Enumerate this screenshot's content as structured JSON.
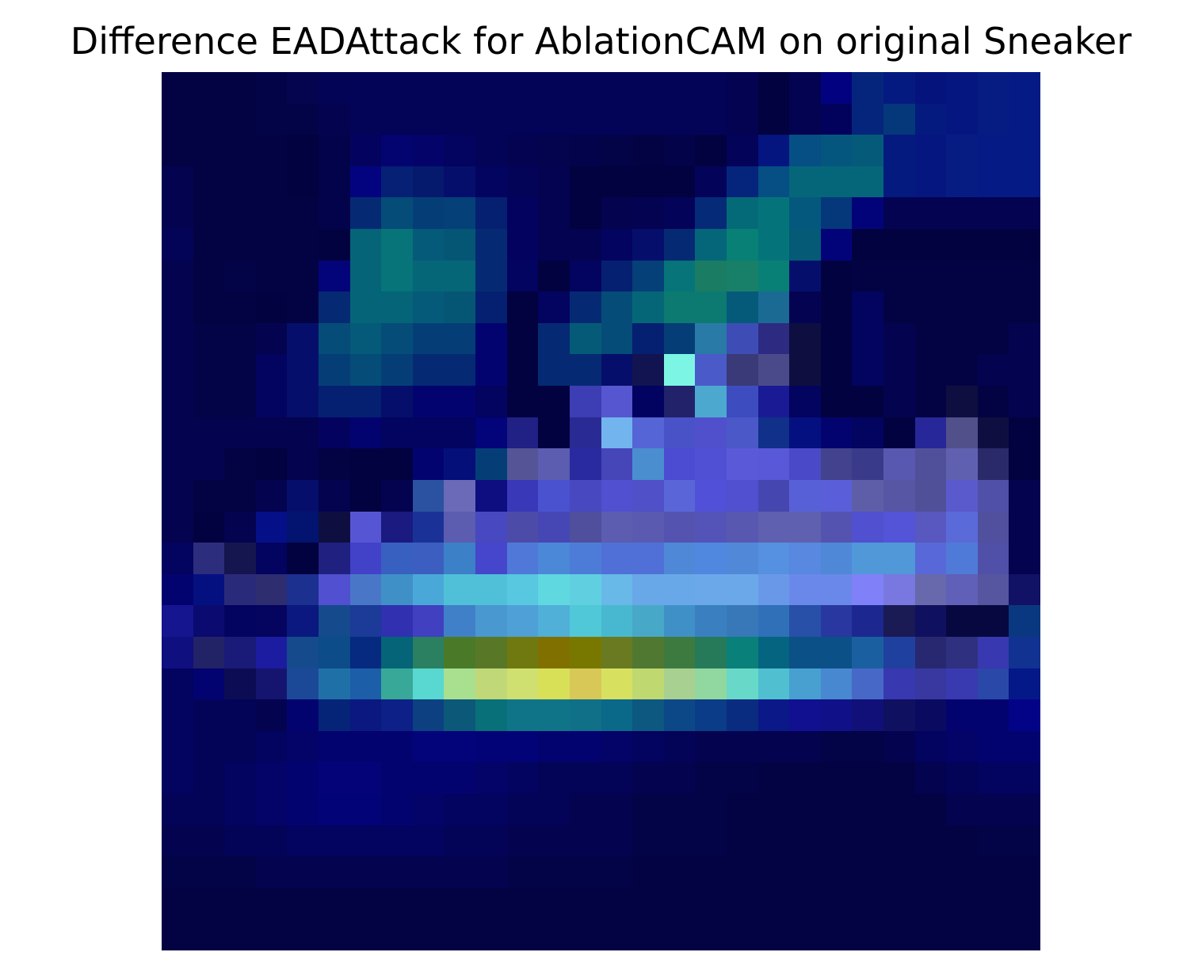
{
  "figure": {
    "title": "Difference EADAttack for AblationCAM on original Sneaker",
    "colormap": "jet-overlay",
    "grid_size": 28,
    "rows": [
      [
        "#030344",
        "#030344",
        "#030344",
        "#030348",
        "#04044f",
        "#040457",
        "#030357",
        "#030357",
        "#030357",
        "#030357",
        "#030357",
        "#030357",
        "#030357",
        "#030357",
        "#030357",
        "#030357",
        "#030357",
        "#030357",
        "#030351",
        "#020240",
        "#030351",
        "#020280",
        "#05257c",
        "#051a80",
        "#05147d",
        "#061681",
        "#071c83",
        "#061a85"
      ],
      [
        "#030344",
        "#030344",
        "#030344",
        "#030348",
        "#030348",
        "#030350",
        "#030357",
        "#030357",
        "#030357",
        "#030357",
        "#030357",
        "#030357",
        "#030357",
        "#030357",
        "#030357",
        "#030357",
        "#030357",
        "#030357",
        "#030351",
        "#020240",
        "#030351",
        "#02025c",
        "#05257c",
        "#05387a",
        "#051a7e",
        "#061681",
        "#071c83",
        "#061a85"
      ],
      [
        "#030344",
        "#030344",
        "#030344",
        "#030344",
        "#020240",
        "#03034b",
        "#03035f",
        "#040470",
        "#03036a",
        "#030360",
        "#030358",
        "#030352",
        "#03034e",
        "#03034c",
        "#030348",
        "#030344",
        "#03034a",
        "#020240",
        "#03035a",
        "#05157f",
        "#054f84",
        "#05567f",
        "#055a7a",
        "#051a7e",
        "#061681",
        "#071c83",
        "#061a85",
        "#061a85"
      ],
      [
        "#030350",
        "#030344",
        "#030344",
        "#030344",
        "#020240",
        "#03034b",
        "#03037f",
        "#052074",
        "#051a6d",
        "#050f6b",
        "#030360",
        "#030358",
        "#030352",
        "#020240",
        "#020240",
        "#020240",
        "#020240",
        "#03035a",
        "#05257c",
        "#054f84",
        "#05667a",
        "#05667a",
        "#05667a",
        "#051a7e",
        "#061681",
        "#071c83",
        "#061a85",
        "#061a85"
      ],
      [
        "#030350",
        "#030344",
        "#030344",
        "#030344",
        "#030344",
        "#03034b",
        "#052a73",
        "#054c78",
        "#053e77",
        "#054078",
        "#052070",
        "#03035f",
        "#030352",
        "#020240",
        "#030350",
        "#030352",
        "#03035a",
        "#052a78",
        "#056a78",
        "#05747a",
        "#05587d",
        "#05387a",
        "#030379",
        "#030352",
        "#030352",
        "#030352",
        "#030352",
        "#030352"
      ],
      [
        "#030358",
        "#030344",
        "#030344",
        "#030344",
        "#030344",
        "#020240",
        "#056478",
        "#067478",
        "#055a7a",
        "#055675",
        "#052a73",
        "#03035f",
        "#030352",
        "#030352",
        "#030360",
        "#050f6b",
        "#052a73",
        "#05667a",
        "#088075",
        "#05747a",
        "#055a75",
        "#030379",
        "#020240",
        "#020240",
        "#020240",
        "#020240",
        "#020240",
        "#020240"
      ],
      [
        "#030350",
        "#030344",
        "#030348",
        "#030344",
        "#030344",
        "#04047a",
        "#056478",
        "#067478",
        "#056678",
        "#056678",
        "#052a73",
        "#030360",
        "#020240",
        "#030360",
        "#052070",
        "#054078",
        "#067478",
        "#1a7c62",
        "#188068",
        "#088075",
        "#050f6b",
        "#020240",
        "#030344",
        "#030344",
        "#030344",
        "#030344",
        "#030344",
        "#030344"
      ],
      [
        "#030350",
        "#030344",
        "#030344",
        "#020240",
        "#030344",
        "#052a73",
        "#056478",
        "#056478",
        "#055a7a",
        "#055675",
        "#052070",
        "#020240",
        "#030360",
        "#052a73",
        "#054c78",
        "#056678",
        "#0c7a70",
        "#0c7a70",
        "#055a7a",
        "#1b6a94",
        "#030352",
        "#020240",
        "#030360",
        "#030344",
        "#030344",
        "#030344",
        "#030344",
        "#030344"
      ],
      [
        "#030350",
        "#030348",
        "#030348",
        "#030350",
        "#050f6b",
        "#054c78",
        "#055a7a",
        "#054c78",
        "#053e77",
        "#053e77",
        "#030370",
        "#020240",
        "#052a73",
        "#055a78",
        "#054c78",
        "#052070",
        "#053e77",
        "#2a7aa8",
        "#3d4db5",
        "#2d2a82",
        "#0e0f40",
        "#020240",
        "#030360",
        "#030350",
        "#030344",
        "#030344",
        "#030344",
        "#030350"
      ],
      [
        "#030350",
        "#030348",
        "#030348",
        "#030360",
        "#050f6b",
        "#053e77",
        "#054c78",
        "#053e77",
        "#052a73",
        "#052a73",
        "#030370",
        "#020240",
        "#052a73",
        "#052a73",
        "#050f6b",
        "#111450",
        "#7df5e5",
        "#4a5ac8",
        "#3a3a78",
        "#4a4a8a",
        "#0e0f40",
        "#020240",
        "#030360",
        "#030350",
        "#030344",
        "#030344",
        "#030350",
        "#030350"
      ],
      [
        "#030350",
        "#030348",
        "#030348",
        "#030360",
        "#050f6b",
        "#052070",
        "#052070",
        "#050f6b",
        "#030370",
        "#030370",
        "#030360",
        "#020240",
        "#020240",
        "#3d3db4",
        "#5656d0",
        "#020260",
        "#22226a",
        "#4da8d0",
        "#3d4dc0",
        "#1a1a95",
        "#030360",
        "#020240",
        "#020240",
        "#030350",
        "#030344",
        "#0e0f40",
        "#030344",
        "#030350"
      ],
      [
        "#030350",
        "#030350",
        "#030350",
        "#030350",
        "#030350",
        "#03035f",
        "#030370",
        "#030360",
        "#030360",
        "#030360",
        "#03037a",
        "#202085",
        "#020240",
        "#2a2a94",
        "#72b4ee",
        "#5565d5",
        "#4a52c8",
        "#5050cc",
        "#4a58c8",
        "#10308a",
        "#051080",
        "#030370",
        "#030360",
        "#020240",
        "#27279a",
        "#51508a",
        "#0e0f40",
        "#020240"
      ],
      [
        "#030350",
        "#030350",
        "#030344",
        "#020240",
        "#030350",
        "#030344",
        "#020240",
        "#020240",
        "#030370",
        "#050f7a",
        "#053e77",
        "#545496",
        "#5c5cb0",
        "#2a2aa0",
        "#4646b8",
        "#4a8ed0",
        "#4c4cd2",
        "#5050d4",
        "#5a5ad8",
        "#5858d8",
        "#4a4ac8",
        "#42428e",
        "#3a3a8a",
        "#5858b0",
        "#50509a",
        "#6060b0",
        "#2a2a6a",
        "#020240"
      ],
      [
        "#030350",
        "#030344",
        "#030344",
        "#030350",
        "#050f6b",
        "#030350",
        "#020240",
        "#030350",
        "#2a52a0",
        "#6a6ab8",
        "#0e0e80",
        "#3838b8",
        "#4a52d0",
        "#4848c0",
        "#5050d0",
        "#5050c8",
        "#5a66d8",
        "#5050d8",
        "#5050d0",
        "#4646b0",
        "#5860d8",
        "#5a5ed8",
        "#5e5ea8",
        "#5656a4",
        "#505098",
        "#5a5acc",
        "#5050a8",
        "#030350"
      ],
      [
        "#030350",
        "#020240",
        "#030350",
        "#050f88",
        "#031470",
        "#0e0f40",
        "#5656d4",
        "#1a1a80",
        "#1a3298",
        "#5c5cb0",
        "#4848c0",
        "#4c4ca8",
        "#4646b4",
        "#4f4f9e",
        "#5c5cb0",
        "#5a5ab0",
        "#5454b0",
        "#5454b8",
        "#5858b0",
        "#6060b0",
        "#6060b0",
        "#5454b0",
        "#5050d0",
        "#5454d8",
        "#5858c0",
        "#5a6ad8",
        "#50509e",
        "#030350"
      ],
      [
        "#030360",
        "#2d2d7e",
        "#151550",
        "#030360",
        "#020240",
        "#202080",
        "#4242c8",
        "#3860c0",
        "#3c5ec0",
        "#3c80c8",
        "#4646cc",
        "#5078d8",
        "#4c88d8",
        "#4d7cd8",
        "#5070d8",
        "#5070d8",
        "#5088d8",
        "#5088e0",
        "#5288d8",
        "#5690e0",
        "#5888e0",
        "#5088d8",
        "#5098d8",
        "#5098d8",
        "#5868d8",
        "#507ad8",
        "#5050a8",
        "#030350"
      ],
      [
        "#030370",
        "#051080",
        "#2a2a7a",
        "#2d2d70",
        "#1c3090",
        "#5050d0",
        "#4a76c8",
        "#4090c8",
        "#4aa8d8",
        "#50c0d8",
        "#50c0d8",
        "#58c8e0",
        "#60d8e0",
        "#60d0e0",
        "#68b8e8",
        "#68a8e8",
        "#68a8e8",
        "#6aa8ea",
        "#6aa8ea",
        "#6a98e8",
        "#6a88ea",
        "#6a88ea",
        "#8080f8",
        "#7878e0",
        "#6868ac",
        "#6060b8",
        "#5555a0",
        "#111166"
      ],
      [
        "#151590",
        "#0a0a70",
        "#030360",
        "#050560",
        "#0a1880",
        "#154a8c",
        "#1c3a98",
        "#3030b0",
        "#4040c0",
        "#4080c8",
        "#4a98d0",
        "#50a0d8",
        "#50b0d8",
        "#50c8d8",
        "#48b8d0",
        "#48a8c8",
        "#4090c8",
        "#3a80c0",
        "#3878b8",
        "#3070b8",
        "#2850a8",
        "#2838a0",
        "#1c2890",
        "#1a1a55",
        "#101060",
        "#080840",
        "#080840",
        "#0a3880"
      ],
      [
        "#100f80",
        "#222266",
        "#1a1a78",
        "#1c1ca0",
        "#154a8c",
        "#0c4c88",
        "#052a80",
        "#056478",
        "#2a8060",
        "#4a7a28",
        "#587828",
        "#707810",
        "#807000",
        "#787800",
        "#6a7a20",
        "#507830",
        "#3c7a40",
        "#267a5a",
        "#0a807a",
        "#056480",
        "#0c5088",
        "#0c5088",
        "#1a60a0",
        "#2040a0",
        "#282870",
        "#303080",
        "#3838b0",
        "#123292"
      ],
      [
        "#030360",
        "#020270",
        "#0c0c54",
        "#151570",
        "#1c4898",
        "#2070a8",
        "#1c5ea8",
        "#38a898",
        "#58d8d0",
        "#a8e090",
        "#c0d878",
        "#d0e070",
        "#d8e058",
        "#d8c858",
        "#d8e060",
        "#c0d870",
        "#a8d090",
        "#90d8a0",
        "#68d8c8",
        "#50c0d0",
        "#48a0d0",
        "#4888d0",
        "#4868c8",
        "#3838b0",
        "#3838a0",
        "#3a3ab0",
        "#2a48a8",
        "#051888"
      ],
      [
        "#030360",
        "#030358",
        "#030358",
        "#030350",
        "#030370",
        "#052478",
        "#0a1880",
        "#0c2088",
        "#0c4080",
        "#0c5878",
        "#087078",
        "#107488",
        "#107488",
        "#107088",
        "#0a6888",
        "#0c5880",
        "#0c4888",
        "#0a3c88",
        "#0a2c80",
        "#0a1888",
        "#101090",
        "#101088",
        "#101078",
        "#101060",
        "#0a0a60",
        "#030370",
        "#030370",
        "#030388"
      ],
      [
        "#030360",
        "#030358",
        "#030358",
        "#030360",
        "#030368",
        "#030370",
        "#030370",
        "#030370",
        "#03037a",
        "#03037a",
        "#030378",
        "#030378",
        "#030370",
        "#030370",
        "#030368",
        "#030360",
        "#030358",
        "#030350",
        "#030350",
        "#030350",
        "#030350",
        "#030348",
        "#030348",
        "#030350",
        "#030360",
        "#030368",
        "#030370",
        "#030370"
      ],
      [
        "#030360",
        "#030358",
        "#030360",
        "#030368",
        "#030370",
        "#040478",
        "#040478",
        "#030370",
        "#030370",
        "#030370",
        "#030368",
        "#030360",
        "#030358",
        "#030358",
        "#030358",
        "#030350",
        "#030350",
        "#030348",
        "#030348",
        "#030344",
        "#030344",
        "#030344",
        "#030344",
        "#030344",
        "#030350",
        "#030358",
        "#030360",
        "#030360"
      ],
      [
        "#030358",
        "#030358",
        "#030360",
        "#030368",
        "#030370",
        "#030378",
        "#030378",
        "#030370",
        "#030368",
        "#030360",
        "#030360",
        "#030358",
        "#030358",
        "#030350",
        "#030350",
        "#030348",
        "#030348",
        "#030348",
        "#030344",
        "#030344",
        "#030344",
        "#030344",
        "#030344",
        "#030344",
        "#030344",
        "#030350",
        "#030350",
        "#030350"
      ],
      [
        "#030350",
        "#030350",
        "#030358",
        "#030358",
        "#030360",
        "#030360",
        "#030360",
        "#030360",
        "#030360",
        "#030358",
        "#030358",
        "#030350",
        "#030350",
        "#030350",
        "#030350",
        "#030348",
        "#030348",
        "#030348",
        "#030344",
        "#030344",
        "#030344",
        "#030344",
        "#030344",
        "#030344",
        "#030344",
        "#030344",
        "#030348",
        "#030348"
      ],
      [
        "#030348",
        "#030348",
        "#030348",
        "#030350",
        "#030350",
        "#030350",
        "#030350",
        "#030350",
        "#030350",
        "#030350",
        "#030350",
        "#030348",
        "#030348",
        "#030348",
        "#030348",
        "#030344",
        "#030344",
        "#030344",
        "#030344",
        "#030344",
        "#030344",
        "#030344",
        "#030344",
        "#030344",
        "#030344",
        "#030344",
        "#030344",
        "#030344"
      ],
      [
        "#030344",
        "#030344",
        "#030344",
        "#030344",
        "#030344",
        "#030344",
        "#030344",
        "#030344",
        "#030344",
        "#030344",
        "#030344",
        "#030344",
        "#030344",
        "#030344",
        "#030344",
        "#030344",
        "#030344",
        "#030344",
        "#030344",
        "#030344",
        "#030344",
        "#030344",
        "#030344",
        "#030344",
        "#030344",
        "#030344",
        "#030344",
        "#030344"
      ],
      [
        "#030344",
        "#030344",
        "#030344",
        "#030344",
        "#030344",
        "#030344",
        "#030344",
        "#030344",
        "#030344",
        "#030344",
        "#030344",
        "#030344",
        "#030344",
        "#030344",
        "#030344",
        "#030344",
        "#030344",
        "#030344",
        "#030344",
        "#030344",
        "#030344",
        "#030344",
        "#030344",
        "#030344",
        "#030344",
        "#030344",
        "#030344",
        "#030344"
      ]
    ]
  }
}
